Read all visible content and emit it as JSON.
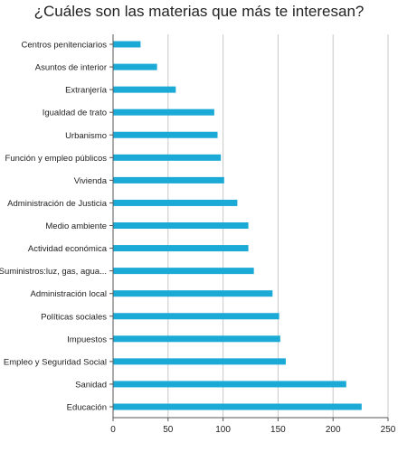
{
  "chart_data": {
    "type": "bar",
    "orientation": "horizontal",
    "title": "¿Cuáles son las materias que más te interesan?",
    "categories": [
      "Centros penitenciarios",
      "Asuntos de interior",
      "Extranjería",
      "Igualdad de trato",
      "Urbanismo",
      "Función y empleo públicos",
      "Vivienda",
      "Administración de Justicia",
      "Medio ambiente",
      "Actividad económica",
      "Suministros:luz, gas, agua...",
      "Administración local",
      "Políticas sociales",
      "Impuestos",
      "Empleo y Seguridad Social",
      "Sanidad",
      "Educación"
    ],
    "values": [
      25,
      40,
      57,
      92,
      95,
      98,
      101,
      113,
      123,
      123,
      128,
      145,
      151,
      152,
      157,
      212,
      226
    ],
    "xlim": [
      0,
      250
    ],
    "xticks": [
      0,
      50,
      100,
      150,
      200,
      250
    ],
    "grid": true,
    "bar_color": "#1BAAD6"
  }
}
